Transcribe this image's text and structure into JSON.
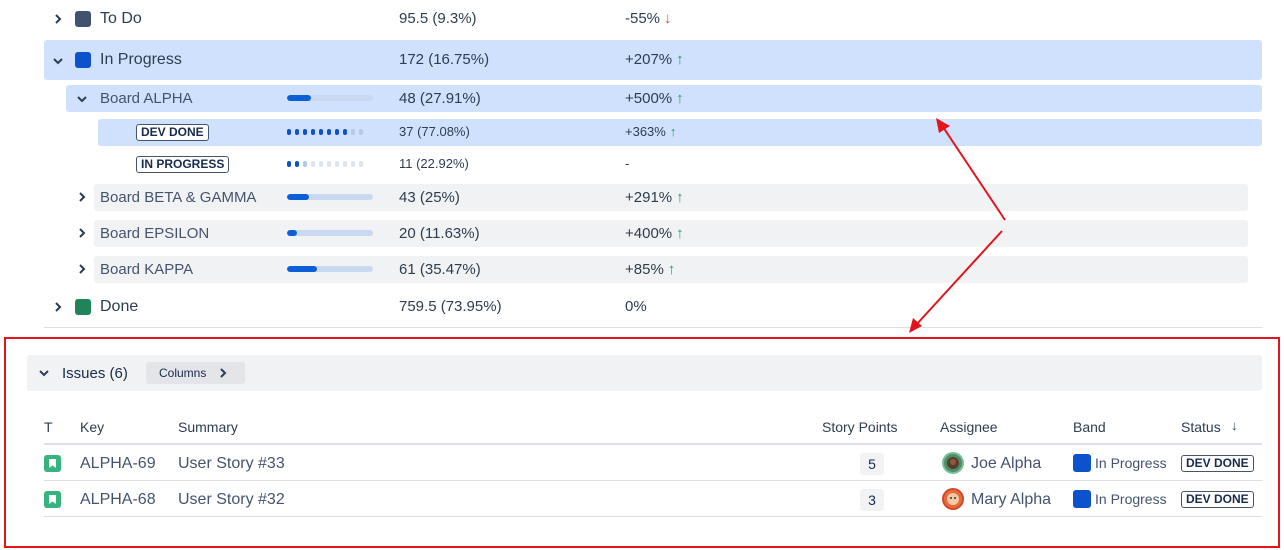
{
  "status_rows": {
    "todo": {
      "label": "To Do",
      "value": "95.5 (9.3%)",
      "change": "-55%",
      "color": "#42526e"
    },
    "in_progress": {
      "label": "In Progress",
      "value": "172 (16.75%)",
      "change": "+207%",
      "color": "#0c52cc"
    },
    "done": {
      "label": "Done",
      "value": "759.5 (73.95%)",
      "change": "0%",
      "color": "#1f845a"
    }
  },
  "boards": [
    {
      "label": "Board ALPHA",
      "value": "48 (27.91%)",
      "change": "+500%",
      "progress": 0.2791
    },
    {
      "label": "Board BETA & GAMMA",
      "value": "43 (25%)",
      "change": "+291%",
      "progress": 0.25
    },
    {
      "label": "Board EPSILON",
      "value": "20 (11.63%)",
      "change": "+400%",
      "progress": 0.1163
    },
    {
      "label": "Board KAPPA",
      "value": "61 (35.47%)",
      "change": "+85%",
      "progress": 0.3547
    }
  ],
  "alpha_statuses": [
    {
      "label": "DEV DONE",
      "value": "37 (77.08%)",
      "change": "+363%",
      "progress": 0.7708
    },
    {
      "label": "IN PROGRESS",
      "value": "11 (22.92%)",
      "change": "-",
      "progress": 0.2292
    }
  ],
  "issues": {
    "title": "Issues (6)",
    "columns_button": "Columns",
    "headers": {
      "type": "T",
      "key": "Key",
      "summary": "Summary",
      "story_points": "Story Points",
      "assignee": "Assignee",
      "band": "Band",
      "status": "Status"
    },
    "rows": [
      {
        "key": "ALPHA-69",
        "summary": "User Story #33",
        "story_points": "5",
        "assignee": "Joe Alpha",
        "band": "In Progress",
        "status": "DEV DONE"
      },
      {
        "key": "ALPHA-68",
        "summary": "User Story #32",
        "story_points": "3",
        "assignee": "Mary Alpha",
        "band": "In Progress",
        "status": "DEV DONE"
      }
    ]
  },
  "colors": {
    "accent": "#0c52cc",
    "highlight": "#cfe1fd",
    "annotation": "#e3141b",
    "up": "#22a06b",
    "down": "#e34935"
  }
}
